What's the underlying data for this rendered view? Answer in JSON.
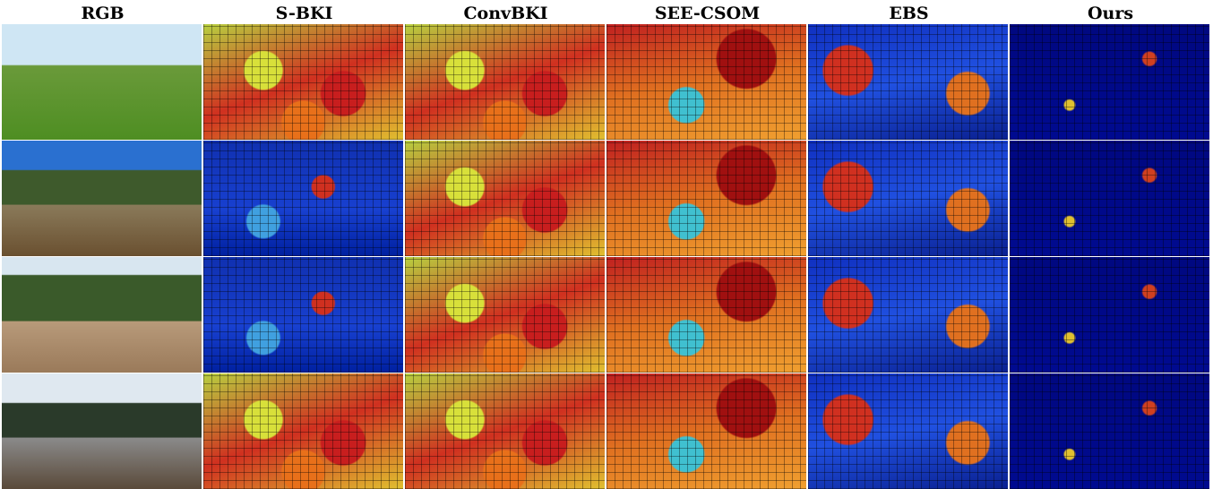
{
  "header": {
    "columns": [
      "RGB",
      "S-BKI",
      "ConvBKI",
      "SEE-CSOM",
      "EBS",
      "Ours"
    ]
  }
}
